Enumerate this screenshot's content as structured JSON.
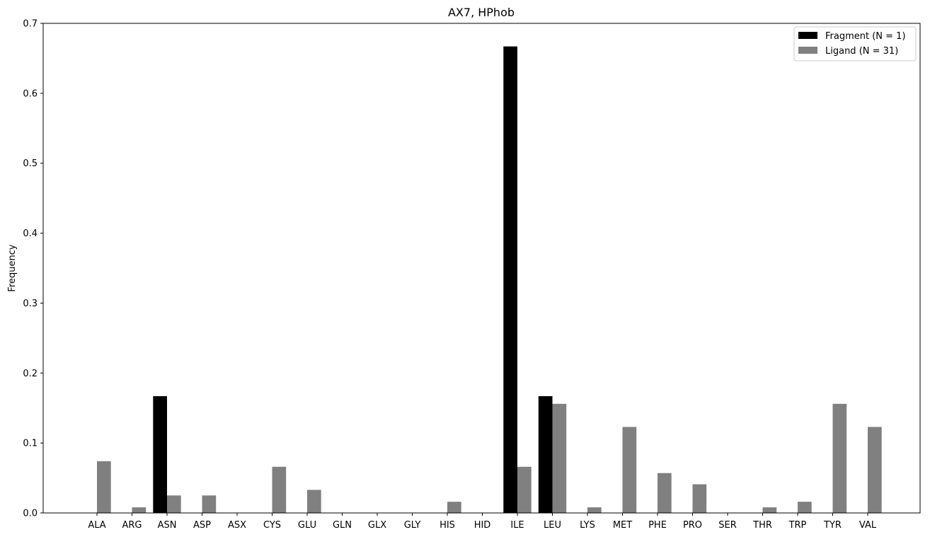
{
  "chart_data": {
    "type": "bar",
    "title": "AX7, HPhob",
    "xlabel": "",
    "ylabel": "Frequency",
    "ylim": [
      0,
      0.7
    ],
    "yticks": [
      "0.0",
      "0.1",
      "0.2",
      "0.3",
      "0.4",
      "0.5",
      "0.6",
      "0.7"
    ],
    "grid": false,
    "legend_position": "top-right",
    "categories": [
      "ALA",
      "ARG",
      "ASN",
      "ASP",
      "ASX",
      "CYS",
      "GLU",
      "GLN",
      "GLX",
      "GLY",
      "HIS",
      "HID",
      "ILE",
      "LEU",
      "LYS",
      "MET",
      "PHE",
      "PRO",
      "SER",
      "THR",
      "TRP",
      "TYR",
      "VAL"
    ],
    "series": [
      {
        "name": "Fragment (N = 1)",
        "color": "#000000",
        "values": [
          0,
          0,
          0.167,
          0,
          0,
          0,
          0,
          0,
          0,
          0,
          0,
          0,
          0.667,
          0.167,
          0,
          0,
          0,
          0,
          0,
          0,
          0,
          0,
          0
        ]
      },
      {
        "name": "Ligand (N = 31)",
        "color": "#808080",
        "values": [
          0.074,
          0.008,
          0.025,
          0.025,
          0,
          0.066,
          0.033,
          0,
          0,
          0,
          0.016,
          0,
          0.066,
          0.156,
          0.008,
          0.123,
          0.057,
          0.041,
          0,
          0.008,
          0.016,
          0.156,
          0.123
        ]
      }
    ]
  }
}
